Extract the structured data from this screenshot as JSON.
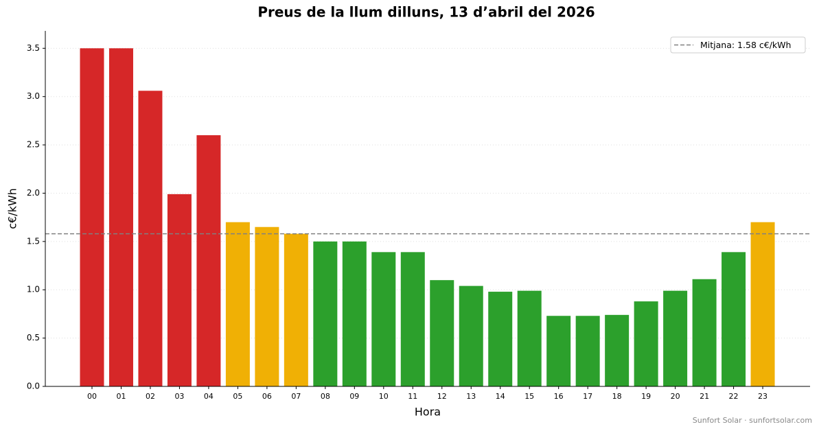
{
  "chart_data": {
    "type": "bar",
    "title": "Preus de la llum dilluns, 13 d’abril del 2026",
    "x_label": "Hora",
    "y_label": "c€/kWh",
    "categories": [
      "00",
      "01",
      "02",
      "03",
      "04",
      "05",
      "06",
      "07",
      "08",
      "09",
      "10",
      "11",
      "12",
      "13",
      "14",
      "15",
      "16",
      "17",
      "18",
      "19",
      "20",
      "21",
      "22",
      "23"
    ],
    "values": [
      3.5,
      3.5,
      3.06,
      1.99,
      2.6,
      1.7,
      1.65,
      1.58,
      1.5,
      1.5,
      1.39,
      1.39,
      1.1,
      1.04,
      0.98,
      0.99,
      0.73,
      0.73,
      0.74,
      0.88,
      0.99,
      1.11,
      1.39,
      1.7
    ],
    "colors": [
      "#d62728",
      "#d62728",
      "#d62728",
      "#d62728",
      "#d62728",
      "#f0b005",
      "#f0b005",
      "#f0b005",
      "#2ca02c",
      "#2ca02c",
      "#2ca02c",
      "#2ca02c",
      "#2ca02c",
      "#2ca02c",
      "#2ca02c",
      "#2ca02c",
      "#2ca02c",
      "#2ca02c",
      "#2ca02c",
      "#2ca02c",
      "#2ca02c",
      "#2ca02c",
      "#2ca02c",
      "#f0b005"
    ],
    "mean": {
      "value": 1.58,
      "label": "Mitjana: 1.58 c€/kWh",
      "color": "#808080"
    },
    "ylim": [
      0,
      3.68
    ],
    "yticks": [
      {
        "value": 0,
        "label": "0.0"
      },
      0.5,
      {
        "value": 1,
        "label": "1.0"
      },
      1.5,
      {
        "value": 2,
        "label": "2.0"
      },
      2.5,
      {
        "value": 3,
        "label": "3.0"
      },
      3.5
    ],
    "grid": true,
    "legend_position": "upper right",
    "footer": "Sunfort Solar · sunfortsolar.com"
  }
}
